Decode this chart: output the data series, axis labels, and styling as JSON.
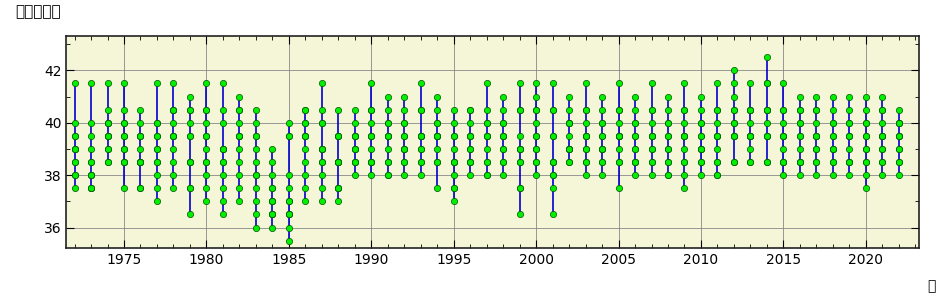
{
  "title_ylabel": "北緯（度）",
  "xlabel_unit": "年",
  "ylim": [
    35.2,
    43.3
  ],
  "yticks": [
    36,
    38,
    40,
    42
  ],
  "xlim": [
    1971.5,
    2023.2
  ],
  "xticks": [
    1975,
    1980,
    1985,
    1990,
    1995,
    2000,
    2005,
    2010,
    2015,
    2020
  ],
  "bg_color": "#f5f5d8",
  "line_color": "#0000cc",
  "dot_color": "#00ee00",
  "dot_edge_color": "#005500",
  "years": [
    1972,
    1973,
    1974,
    1975,
    1976,
    1977,
    1978,
    1979,
    1980,
    1981,
    1982,
    1983,
    1984,
    1985,
    1986,
    1987,
    1988,
    1989,
    1990,
    1991,
    1992,
    1993,
    1994,
    1995,
    1996,
    1997,
    1998,
    1999,
    2000,
    2001,
    2002,
    2003,
    2004,
    2005,
    2006,
    2007,
    2008,
    2009,
    2010,
    2011,
    2012,
    2013,
    2014,
    2015,
    2016,
    2017,
    2018,
    2019,
    2020,
    2021,
    2022
  ],
  "monthly_data": [
    [
      39.0,
      39.5,
      38.5,
      38.0,
      39.0,
      40.0,
      41.5,
      39.5,
      38.0,
      37.5,
      38.5,
      39.0
    ],
    [
      38.5,
      39.0,
      38.0,
      37.5,
      38.0,
      39.5,
      41.5,
      40.0,
      38.5,
      37.5,
      38.0,
      37.5
    ],
    [
      39.5,
      40.0,
      41.5,
      40.0,
      39.0,
      38.5,
      39.5,
      40.5,
      39.0,
      38.5,
      39.5,
      40.0
    ],
    [
      40.5,
      41.5,
      40.0,
      39.5,
      38.5,
      39.0,
      40.0,
      39.5,
      38.5,
      37.5,
      38.5,
      39.0
    ],
    [
      40.0,
      39.5,
      38.5,
      37.5,
      38.5,
      39.5,
      40.5,
      39.5,
      38.5,
      37.5,
      38.5,
      39.0
    ],
    [
      38.5,
      39.0,
      40.0,
      41.5,
      40.0,
      39.0,
      38.0,
      37.0,
      37.5,
      38.5,
      39.5,
      39.5
    ],
    [
      40.0,
      39.5,
      40.5,
      41.5,
      40.5,
      39.5,
      38.5,
      37.5,
      38.0,
      39.0,
      39.5,
      40.5
    ],
    [
      40.0,
      40.5,
      41.0,
      40.5,
      39.5,
      38.5,
      37.5,
      36.5,
      37.5,
      38.5,
      39.5,
      38.5
    ],
    [
      39.5,
      40.5,
      41.5,
      40.5,
      39.5,
      38.5,
      37.5,
      37.0,
      38.0,
      39.0,
      40.0,
      38.5
    ],
    [
      39.0,
      40.0,
      41.5,
      40.5,
      39.0,
      38.0,
      37.0,
      36.5,
      37.5,
      38.5,
      39.0,
      38.5
    ],
    [
      39.5,
      40.5,
      41.0,
      40.0,
      39.5,
      38.5,
      37.5,
      37.0,
      38.0,
      39.5,
      40.5,
      39.0
    ],
    [
      38.0,
      39.5,
      40.5,
      39.5,
      38.0,
      37.0,
      36.0,
      36.5,
      37.5,
      38.5,
      40.0,
      39.0
    ],
    [
      39.0,
      38.5,
      37.5,
      37.0,
      36.5,
      36.0,
      36.5,
      37.0,
      38.0,
      37.5,
      37.0,
      36.5
    ],
    [
      37.0,
      36.5,
      36.0,
      35.5,
      36.5,
      37.5,
      36.5,
      37.0,
      38.0,
      39.5,
      40.0,
      39.5
    ],
    [
      39.5,
      40.0,
      40.5,
      39.5,
      38.5,
      37.5,
      37.0,
      38.0,
      39.0,
      40.0,
      40.5,
      39.5
    ],
    [
      39.0,
      40.0,
      41.5,
      40.5,
      39.0,
      38.0,
      37.0,
      37.5,
      38.5,
      39.0,
      40.0,
      38.5
    ],
    [
      38.5,
      39.5,
      40.5,
      39.5,
      38.5,
      37.5,
      37.0,
      37.5,
      38.5,
      39.5,
      38.5,
      37.5
    ],
    [
      38.5,
      39.5,
      40.5,
      39.5,
      38.5,
      38.0,
      39.0,
      39.5,
      40.0,
      39.0,
      38.5,
      39.0
    ],
    [
      39.5,
      40.5,
      41.5,
      40.5,
      39.5,
      38.5,
      38.0,
      39.0,
      40.0,
      39.5,
      38.5,
      38.5
    ],
    [
      39.5,
      40.5,
      41.0,
      40.0,
      39.5,
      38.5,
      38.0,
      39.0,
      40.0,
      39.5,
      38.5,
      38.0
    ],
    [
      39.0,
      40.0,
      41.0,
      40.0,
      39.0,
      38.5,
      38.0,
      39.5,
      40.5,
      39.5,
      38.5,
      39.0
    ],
    [
      39.5,
      40.5,
      41.5,
      40.5,
      39.5,
      38.5,
      38.0,
      39.0,
      39.5,
      38.5,
      39.0,
      39.5
    ],
    [
      39.5,
      40.0,
      41.0,
      40.5,
      39.5,
      38.5,
      37.5,
      38.5,
      39.5,
      40.0,
      39.5,
      39.0
    ],
    [
      39.0,
      40.0,
      40.5,
      39.5,
      38.5,
      38.0,
      37.0,
      37.5,
      38.5,
      39.5,
      38.5,
      37.5
    ],
    [
      38.5,
      39.5,
      40.5,
      39.5,
      38.5,
      38.0,
      39.0,
      40.0,
      40.5,
      39.5,
      38.5,
      39.0
    ],
    [
      39.5,
      40.0,
      41.5,
      40.5,
      39.5,
      38.5,
      38.0,
      39.0,
      40.0,
      39.5,
      38.5,
      38.0
    ],
    [
      39.0,
      40.0,
      41.0,
      40.5,
      39.5,
      38.5,
      38.0,
      39.0,
      39.5,
      40.0,
      39.5,
      38.5
    ],
    [
      39.0,
      40.5,
      41.5,
      40.5,
      39.5,
      38.5,
      37.5,
      36.5,
      37.5,
      38.5,
      39.0,
      39.0
    ],
    [
      40.0,
      41.0,
      41.5,
      40.5,
      39.5,
      38.5,
      38.0,
      39.0,
      40.5,
      39.5,
      38.5,
      39.0
    ],
    [
      39.5,
      40.5,
      41.5,
      40.5,
      39.5,
      38.5,
      38.0,
      36.5,
      37.5,
      38.5,
      38.5,
      38.0
    ],
    [
      39.0,
      40.0,
      41.0,
      40.0,
      39.0,
      38.5,
      39.0,
      40.0,
      40.5,
      39.5,
      38.5,
      39.0
    ],
    [
      39.5,
      40.5,
      41.5,
      40.5,
      39.5,
      38.5,
      38.0,
      39.0,
      40.0,
      39.5,
      38.5,
      39.0
    ],
    [
      39.0,
      40.0,
      41.0,
      40.5,
      39.5,
      38.5,
      38.0,
      39.0,
      40.0,
      39.5,
      38.5,
      39.0
    ],
    [
      39.5,
      40.5,
      41.5,
      40.5,
      39.5,
      38.5,
      37.5,
      38.5,
      39.5,
      40.0,
      39.5,
      39.0
    ],
    [
      39.0,
      40.0,
      41.0,
      40.5,
      39.5,
      38.5,
      38.0,
      39.0,
      40.0,
      39.5,
      38.5,
      38.5
    ],
    [
      39.5,
      40.5,
      41.5,
      40.5,
      39.5,
      38.5,
      38.0,
      39.0,
      40.0,
      39.5,
      38.5,
      39.0
    ],
    [
      39.0,
      40.0,
      41.0,
      40.5,
      39.5,
      38.5,
      38.0,
      39.0,
      40.0,
      39.5,
      38.0,
      38.5
    ],
    [
      39.5,
      40.5,
      41.5,
      40.5,
      39.5,
      38.5,
      38.0,
      39.0,
      40.0,
      39.5,
      38.5,
      37.5
    ],
    [
      39.0,
      40.0,
      41.0,
      40.5,
      39.5,
      38.5,
      38.0,
      39.0,
      40.0,
      39.5,
      38.5,
      39.0
    ],
    [
      39.5,
      40.5,
      41.5,
      40.5,
      39.5,
      38.5,
      38.0,
      39.0,
      40.0,
      39.5,
      38.5,
      38.0
    ],
    [
      40.0,
      41.0,
      42.0,
      41.5,
      40.5,
      39.5,
      38.5,
      39.5,
      40.5,
      40.0,
      39.5,
      38.5
    ],
    [
      39.5,
      40.5,
      41.5,
      40.5,
      39.5,
      38.5,
      38.5,
      39.5,
      40.5,
      40.0,
      39.5,
      39.0
    ],
    [
      40.5,
      41.5,
      42.5,
      41.5,
      40.5,
      39.5,
      38.5,
      39.5,
      40.5,
      40.0,
      39.5,
      38.5
    ],
    [
      39.5,
      40.5,
      41.5,
      40.5,
      39.5,
      38.5,
      38.0,
      39.0,
      40.0,
      39.5,
      38.5,
      38.5
    ],
    [
      40.0,
      40.5,
      41.0,
      40.5,
      39.5,
      38.5,
      38.0,
      39.0,
      40.0,
      39.5,
      38.5,
      38.5
    ],
    [
      39.5,
      40.5,
      41.0,
      40.5,
      39.5,
      38.5,
      38.0,
      39.0,
      40.0,
      39.5,
      38.5,
      39.0
    ],
    [
      39.0,
      40.0,
      41.0,
      40.5,
      39.5,
      38.5,
      38.0,
      39.0,
      40.0,
      39.5,
      38.5,
      39.0
    ],
    [
      39.5,
      40.0,
      41.0,
      40.5,
      39.5,
      38.5,
      38.0,
      39.0,
      40.0,
      39.5,
      38.5,
      38.5
    ],
    [
      39.0,
      40.0,
      41.0,
      40.5,
      39.5,
      38.5,
      38.0,
      39.0,
      40.0,
      39.5,
      38.5,
      37.5
    ],
    [
      39.5,
      40.5,
      41.0,
      40.5,
      39.5,
      38.5,
      38.0,
      39.0,
      40.0,
      39.5,
      38.5,
      39.0
    ],
    [
      39.0,
      40.0,
      40.5,
      40.0,
      39.5,
      38.5,
      38.0,
      39.0,
      40.0,
      39.5,
      38.5,
      39.5
    ]
  ]
}
